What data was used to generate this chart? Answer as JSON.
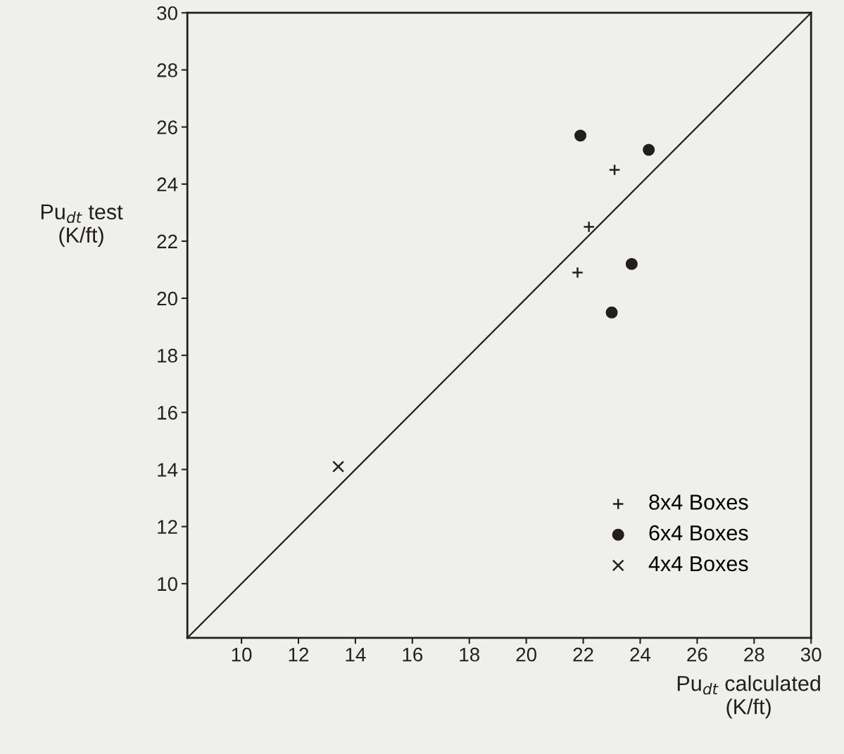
{
  "chart_data": {
    "type": "scatter",
    "xlabel": "Pu$_{dt}$ calculated\n(K/ft)",
    "ylabel": "Pu$_{dt}$ test\n(K/ft)",
    "xlim": [
      8.1,
      30
    ],
    "ylim": [
      8.1,
      30
    ],
    "xticks": [
      10,
      12,
      14,
      16,
      18,
      20,
      22,
      24,
      26,
      28,
      30
    ],
    "yticks": [
      10,
      12,
      14,
      16,
      18,
      20,
      22,
      24,
      26,
      28,
      30
    ],
    "grid": false,
    "legend": "bottom right",
    "series": [
      {
        "name": "8x4 Boxes",
        "color": "#231f20",
        "marker": "cross",
        "x": [
          23.1,
          22.2,
          21.8
        ],
        "values": [
          24.5,
          22.5,
          20.9
        ]
      },
      {
        "name": "6x4 Boxes",
        "color": "#231f20",
        "marker": "circle",
        "x": [
          21.9,
          24.3,
          23.7,
          23.0
        ],
        "values": [
          25.7,
          25.2,
          21.2,
          19.5
        ]
      },
      {
        "name": "4x4 Boxes",
        "color": "#231f20",
        "marker": "x",
        "x": [
          13.4
        ],
        "values": [
          14.1
        ]
      },
      {
        "type": "line",
        "color": "#231f20",
        "marker": "none",
        "line_style": "solid",
        "x": [
          8.1,
          30
        ],
        "values": [
          8.1,
          30
        ]
      }
    ]
  }
}
